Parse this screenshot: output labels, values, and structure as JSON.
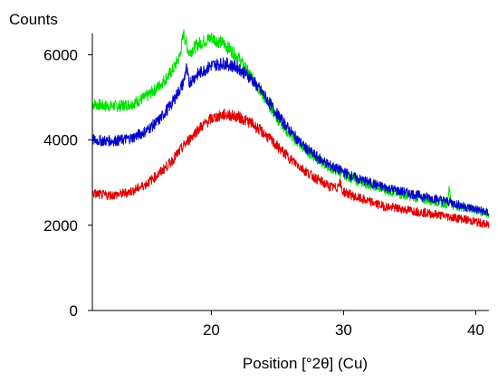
{
  "chart_data": {
    "type": "line",
    "title": "",
    "xlabel": "Position [°2θ] (Cu)",
    "ylabel": "Counts",
    "xlim": [
      11,
      41
    ],
    "ylim": [
      0,
      6500
    ],
    "x_ticks": [
      20,
      30,
      40
    ],
    "y_ticks": [
      0,
      2000,
      4000,
      6000
    ],
    "x_tick_labels": [
      "20",
      "30",
      "40"
    ],
    "y_tick_labels": [
      "0",
      "2000",
      "4000",
      "6000"
    ],
    "grid": false,
    "legend": "none",
    "noise": "high-frequency noise on all series",
    "series": [
      {
        "color": "#00e000",
        "x": [
          11,
          12,
          13,
          14,
          15,
          16,
          17,
          17.6,
          17.9,
          18.3,
          19,
          20,
          21,
          22,
          23,
          24,
          25,
          26,
          27,
          28,
          29,
          30,
          31,
          32,
          33,
          34,
          35,
          36,
          37,
          37.8,
          38,
          38.2,
          39,
          40,
          41
        ],
        "values": [
          4850,
          4800,
          4800,
          4850,
          5000,
          5250,
          5600,
          5950,
          6500,
          6050,
          6250,
          6400,
          6250,
          5950,
          5500,
          5000,
          4500,
          4100,
          3800,
          3550,
          3350,
          3200,
          3050,
          2950,
          2850,
          2750,
          2680,
          2620,
          2550,
          2500,
          2850,
          2480,
          2420,
          2350,
          2250
        ]
      },
      {
        "color": "#0000cc",
        "x": [
          11,
          12,
          13,
          14,
          15,
          16,
          17,
          17.9,
          18.1,
          18.3,
          19,
          20,
          21,
          22,
          23,
          24,
          25,
          26,
          27,
          28,
          29,
          30,
          31,
          32,
          33,
          34,
          35,
          36,
          37,
          38,
          39,
          40,
          41
        ],
        "values": [
          4000,
          3980,
          3990,
          4050,
          4200,
          4450,
          4850,
          5350,
          5700,
          5350,
          5550,
          5750,
          5800,
          5700,
          5450,
          5050,
          4600,
          4200,
          3850,
          3600,
          3400,
          3250,
          3100,
          3000,
          2900,
          2820,
          2750,
          2680,
          2620,
          2550,
          2450,
          2380,
          2280
        ]
      },
      {
        "color": "#e00000",
        "x": [
          11,
          12,
          13,
          14,
          15,
          16,
          17,
          18,
          19,
          20,
          21,
          22,
          23,
          24,
          25,
          26,
          27,
          28,
          29,
          29.5,
          29.7,
          29.9,
          31,
          32,
          33,
          34,
          35,
          36,
          37,
          38,
          39,
          40,
          41
        ],
        "values": [
          2750,
          2700,
          2720,
          2800,
          2950,
          3200,
          3500,
          3900,
          4250,
          4500,
          4600,
          4550,
          4400,
          4150,
          3850,
          3550,
          3300,
          3080,
          2900,
          2870,
          3050,
          2800,
          2650,
          2550,
          2450,
          2400,
          2350,
          2300,
          2250,
          2200,
          2150,
          2080,
          2000
        ]
      }
    ]
  }
}
